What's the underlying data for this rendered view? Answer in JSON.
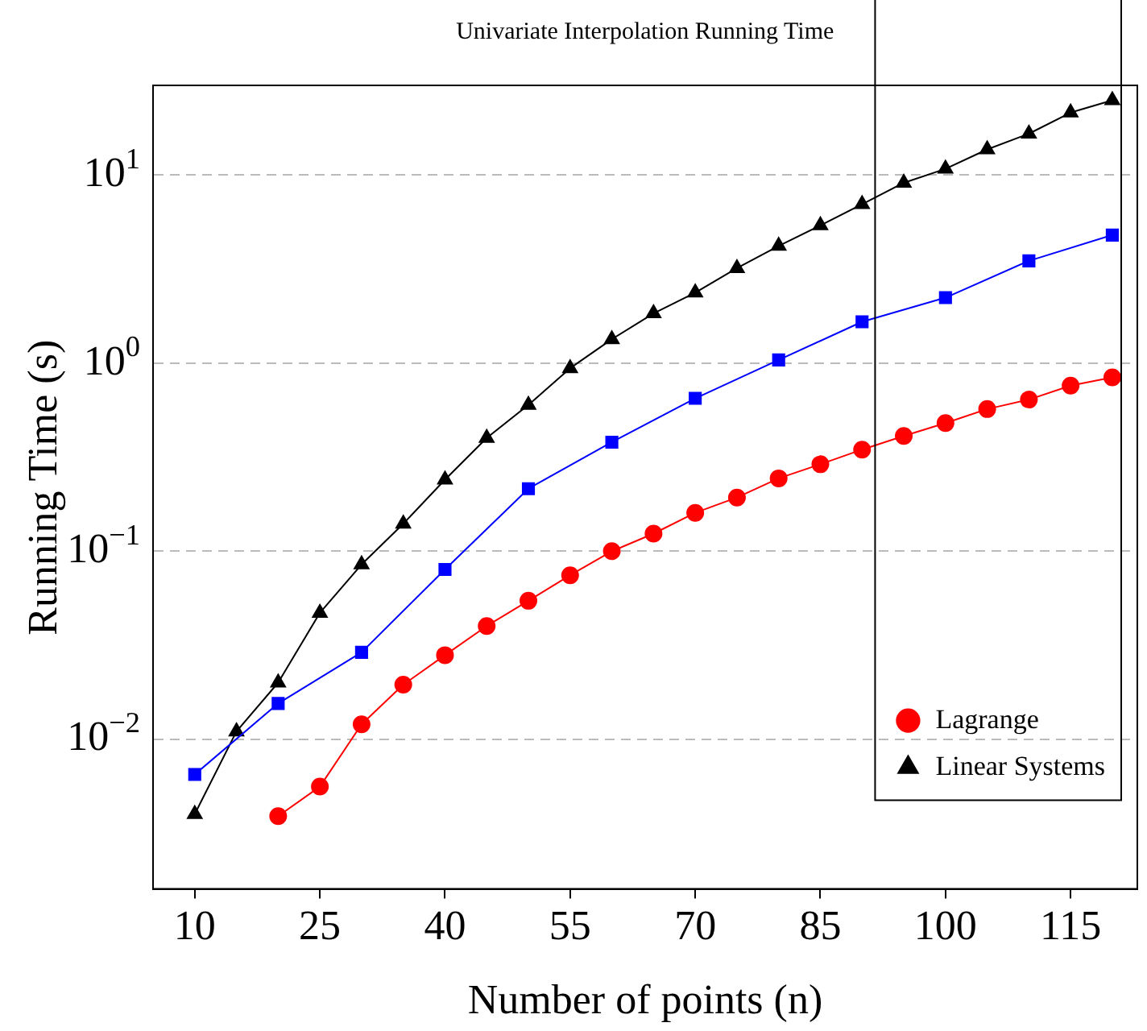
{
  "chart_data": {
    "type": "line",
    "title": "Univariate Interpolation Running Time",
    "xlabel": "Number of points (n)",
    "ylabel": "Running Time (s)",
    "log": "y",
    "grid": "y",
    "legend": "bottom right",
    "xlim": [
      5,
      123
    ],
    "xticks": [
      10,
      25,
      40,
      55,
      70,
      85,
      100,
      115
    ],
    "ylim": [
      0.0016,
      30
    ],
    "yticks": [
      {
        "value": 0.01,
        "label": "10$^{−2}$"
      },
      {
        "value": 0.1,
        "label": "10$^{−1}$"
      },
      {
        "value": 1,
        "label": "10$^{0}$"
      },
      {
        "value": 10,
        "label": "10$^{1}$"
      }
    ],
    "series": [
      {
        "color": "#0000ff",
        "marker": "square",
        "x": [
          10,
          20,
          30,
          40,
          50,
          60,
          70,
          80,
          90,
          100,
          110,
          120
        ],
        "values": [
          0.0065,
          0.0155,
          0.029,
          0.08,
          0.215,
          0.38,
          0.65,
          1.04,
          1.66,
          2.23,
          3.5,
          4.8
        ]
      },
      {
        "name": "Lagrange",
        "color": "#ff0000",
        "marker": "circle",
        "x": [
          20,
          25,
          30,
          35,
          40,
          45,
          50,
          55,
          60,
          65,
          70,
          75,
          80,
          85,
          90,
          95,
          100,
          105,
          110,
          115,
          120
        ],
        "values": [
          0.0039,
          0.0056,
          0.012,
          0.0195,
          0.028,
          0.04,
          0.0545,
          0.0745,
          0.1,
          0.124,
          0.16,
          0.193,
          0.244,
          0.29,
          0.347,
          0.41,
          0.48,
          0.57,
          0.64,
          0.76,
          0.84
        ]
      },
      {
        "name": "Linear Systems",
        "color": "#000000",
        "marker": "triangle",
        "x": [
          10,
          15,
          20,
          25,
          30,
          35,
          40,
          45,
          50,
          55,
          60,
          65,
          70,
          75,
          80,
          85,
          90,
          95,
          100,
          105,
          110,
          115,
          120
        ],
        "values": [
          0.004,
          0.011,
          0.02,
          0.047,
          0.085,
          0.14,
          0.24,
          0.4,
          0.6,
          0.94,
          1.34,
          1.84,
          2.37,
          3.2,
          4.2,
          5.4,
          7.0,
          9.1,
          10.8,
          13.7,
          16.6,
          21.5,
          25
        ]
      }
    ]
  }
}
